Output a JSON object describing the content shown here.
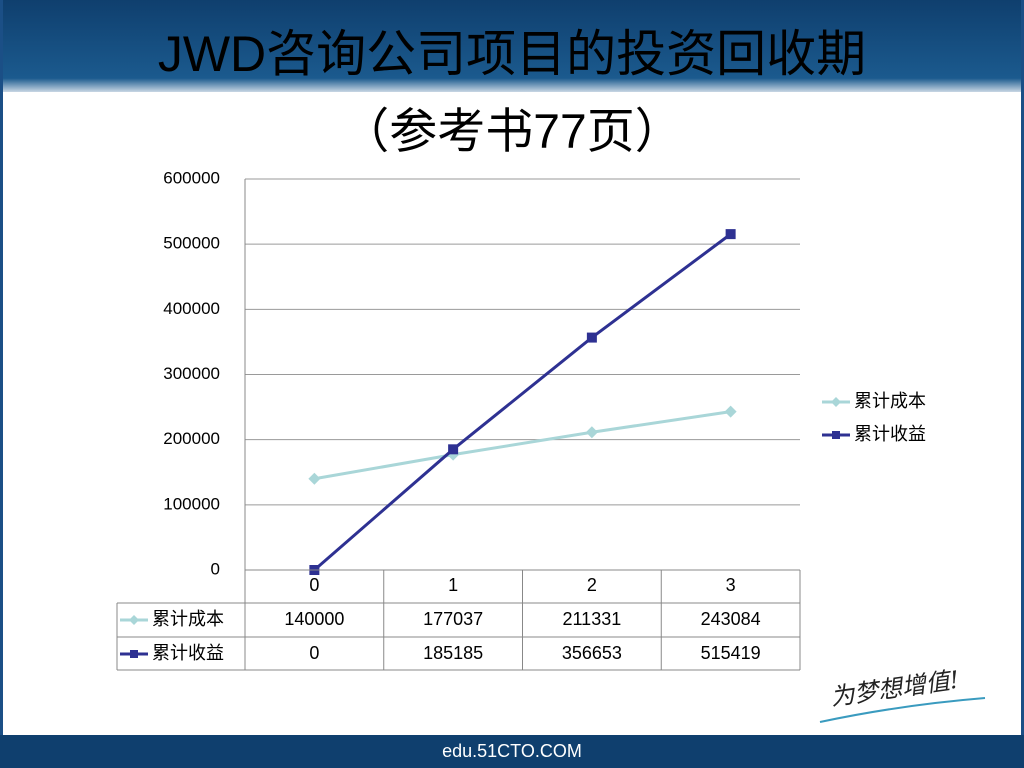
{
  "chart_data": {
    "type": "line",
    "title": "JWD咨询公司项目的投资回收期",
    "subtitle": "（参考书77页）",
    "categories": [
      "0",
      "1",
      "2",
      "3"
    ],
    "series": [
      {
        "name": "累计成本",
        "color": "#a9d6d8",
        "marker": "diamond",
        "values": [
          140000,
          177037,
          211331,
          243084
        ]
      },
      {
        "name": "累计收益",
        "color": "#2e3192",
        "marker": "square",
        "values": [
          0,
          185185,
          356653,
          515419
        ]
      }
    ],
    "ylim": [
      0,
      600000
    ],
    "yticks": [
      0,
      100000,
      200000,
      300000,
      400000,
      500000,
      600000
    ],
    "grid": true,
    "legend": "right",
    "data_table": true
  },
  "slogan": "为梦想增值!",
  "footer": "edu.51CTO.COM"
}
